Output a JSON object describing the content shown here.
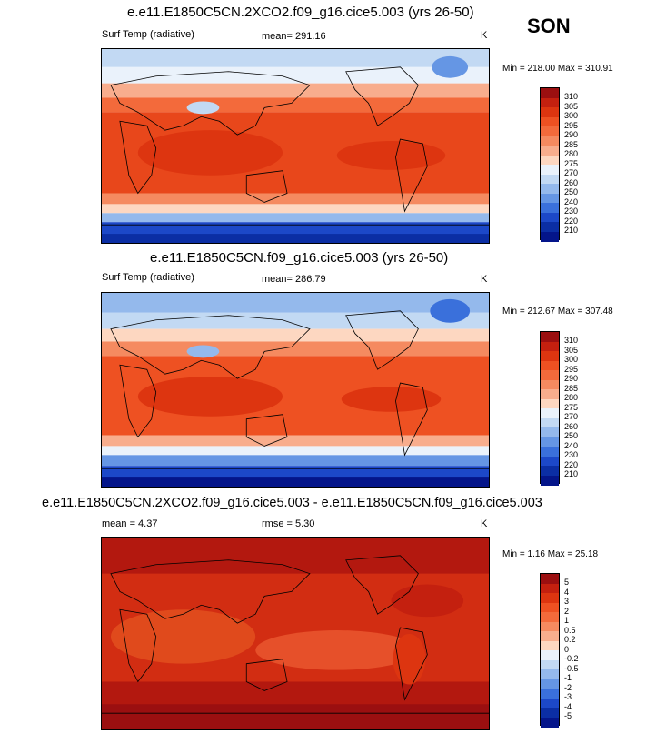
{
  "season": "SON",
  "panels": [
    {
      "title": "e.e11.E1850C5CN.2XCO2.f09_g16.cice5.003 (yrs 26-50)",
      "left_label": "Surf Temp (radiative)",
      "mean_text": "mean= 291.16",
      "unit": "K",
      "minmax": "Min = 218.00 Max = 310.91",
      "colorbar_labels": [
        "310",
        "305",
        "300",
        "295",
        "290",
        "285",
        "280",
        "275",
        "270",
        "260",
        "250",
        "240",
        "230",
        "220",
        "210"
      ],
      "palette": [
        "#9b0f10",
        "#c4200f",
        "#dd3510",
        "#ee5122",
        "#f36a3b",
        "#f58a60",
        "#f8ad8d",
        "#fdd7c1",
        "#eaf2fb",
        "#c2d9f3",
        "#94b9ec",
        "#6596e4",
        "#3a70db",
        "#1c48c8",
        "#0b2ea4",
        "#04158a"
      ]
    },
    {
      "title": "e.e11.E1850C5CN.f09_g16.cice5.003 (yrs 26-50)",
      "left_label": "Surf Temp (radiative)",
      "mean_text": "mean= 286.79",
      "unit": "K",
      "minmax": "Min = 212.67 Max = 307.48",
      "colorbar_labels": [
        "310",
        "305",
        "300",
        "295",
        "290",
        "285",
        "280",
        "275",
        "270",
        "260",
        "250",
        "240",
        "230",
        "220",
        "210"
      ],
      "palette": [
        "#9b0f10",
        "#c4200f",
        "#dd3510",
        "#ee5122",
        "#f36a3b",
        "#f58a60",
        "#f8ad8d",
        "#fdd7c1",
        "#eaf2fb",
        "#c2d9f3",
        "#94b9ec",
        "#6596e4",
        "#3a70db",
        "#1c48c8",
        "#0b2ea4",
        "#04158a"
      ]
    },
    {
      "title": "e.e11.E1850C5CN.2XCO2.f09_g16.cice5.003 - e.e11.E1850C5CN.f09_g16.cice5.003",
      "left_label": "mean =   4.37",
      "mean_text": "rmse =   5.30",
      "unit": "K",
      "minmax": "Min =  1.16 Max =  25.18",
      "colorbar_labels": [
        "5",
        "4",
        "3",
        "2",
        "1",
        "0.5",
        "0.2",
        "0",
        "-0.2",
        "-0.5",
        "-1",
        "-2",
        "-3",
        "-4",
        "-5"
      ],
      "palette": [
        "#9b0f10",
        "#c4200f",
        "#dd3510",
        "#ee5122",
        "#f36a3b",
        "#f58a60",
        "#f8ad8d",
        "#fdd7c1",
        "#eaf2fb",
        "#c2d9f3",
        "#94b9ec",
        "#6596e4",
        "#3a70db",
        "#1c48c8",
        "#0b2ea4",
        "#04158a"
      ]
    }
  ],
  "chart_data": [
    {
      "type": "heatmap",
      "title": "e.e11.E1850C5CN.2XCO2.f09_g16.cice5.003 (yrs 26-50)",
      "field": "Surf Temp (radiative)",
      "units": "K",
      "mean": 291.16,
      "min": 218.0,
      "max": 310.91,
      "contour_levels": [
        210,
        220,
        230,
        240,
        250,
        260,
        270,
        275,
        280,
        285,
        290,
        295,
        300,
        305,
        310
      ]
    },
    {
      "type": "heatmap",
      "title": "e.e11.E1850C5CN.f09_g16.cice5.003 (yrs 26-50)",
      "field": "Surf Temp (radiative)",
      "units": "K",
      "mean": 286.79,
      "min": 212.67,
      "max": 307.48,
      "contour_levels": [
        210,
        220,
        230,
        240,
        250,
        260,
        270,
        275,
        280,
        285,
        290,
        295,
        300,
        305,
        310
      ]
    },
    {
      "type": "heatmap",
      "title": "e.e11.E1850C5CN.2XCO2.f09_g16.cice5.003 - e.e11.E1850C5CN.f09_g16.cice5.003",
      "units": "K",
      "mean": 4.37,
      "rmse": 5.3,
      "min": 1.16,
      "max": 25.18,
      "contour_levels": [
        -5,
        -4,
        -3,
        -2,
        -1,
        -0.5,
        -0.2,
        0,
        0.2,
        0.5,
        1,
        2,
        3,
        4,
        5
      ]
    }
  ]
}
